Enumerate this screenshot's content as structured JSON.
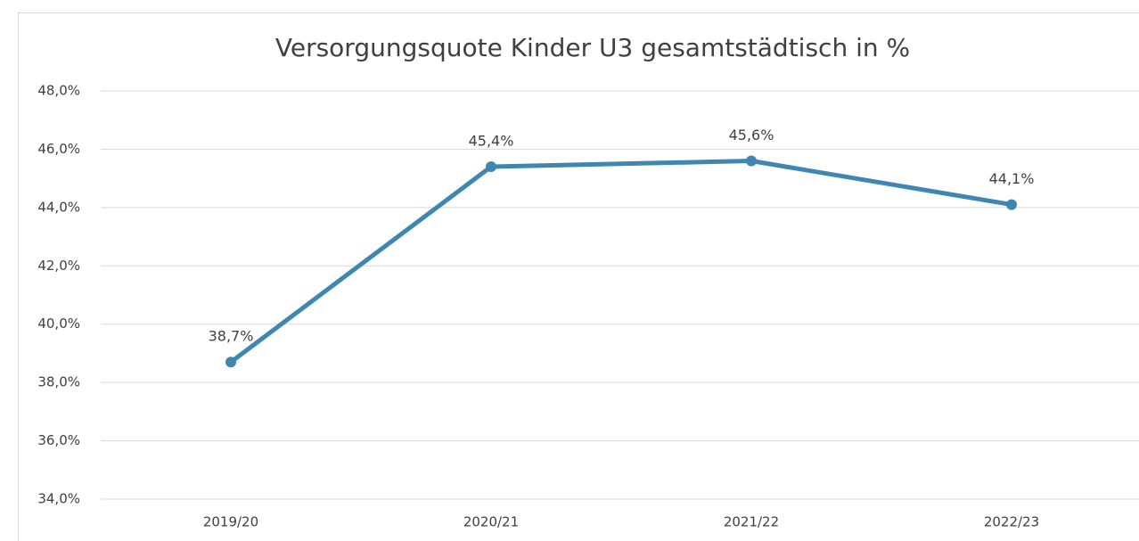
{
  "chart_data": {
    "type": "line",
    "title": "Versorgungsquote Kinder U3 gesamtstädtisch in %",
    "categories": [
      "2019/20",
      "2020/21",
      "2021/22",
      "2022/23"
    ],
    "series": [
      {
        "name": "Versorgungsquote",
        "color": "#3f87b0",
        "values": [
          38.7,
          45.4,
          45.6,
          44.1
        ],
        "value_labels": [
          "38,7%",
          "45,4%",
          "45,6%",
          "44,1%"
        ]
      }
    ],
    "ylim": [
      34,
      48
    ],
    "yticks": [
      {
        "value": 34,
        "label": "34,0%"
      },
      {
        "value": 36,
        "label": "36,0%"
      },
      {
        "value": 38,
        "label": "38,0%"
      },
      {
        "value": 40,
        "label": "40,0%"
      },
      {
        "value": 42,
        "label": "42,0%"
      },
      {
        "value": 44,
        "label": "44,0%"
      },
      {
        "value": 46,
        "label": "46,0%"
      },
      {
        "value": 48,
        "label": "48,0%"
      }
    ],
    "grid": true
  }
}
